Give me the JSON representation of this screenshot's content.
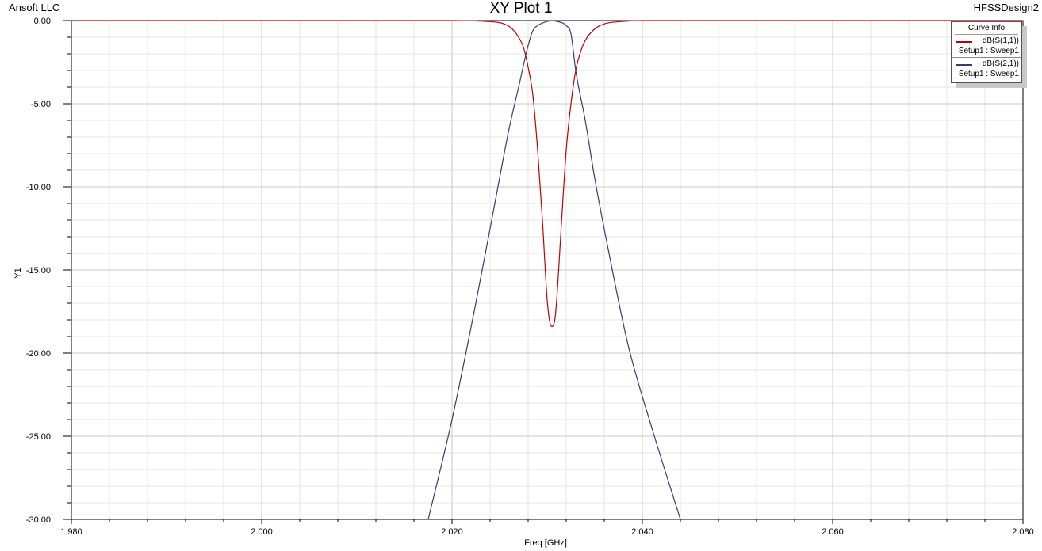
{
  "header": {
    "company": "Ansoft LLC",
    "title": "XY Plot 1",
    "design": "HFSSDesign2"
  },
  "legend": {
    "title": "Curve Info",
    "entries": [
      {
        "name": "dB(S(1,1))",
        "setup": "Setup1 : Sweep1",
        "color": "#c00000"
      },
      {
        "name": "dB(S(2,1))",
        "setup": "Setup1 : Sweep1",
        "color": "#3a3a78"
      }
    ]
  },
  "chart_data": {
    "type": "line",
    "title": "XY Plot 1",
    "xlabel": "Freq [GHz]",
    "ylabel": "Y1",
    "xlim": [
      1.98,
      2.08
    ],
    "ylim": [
      -30,
      0
    ],
    "x_ticks": [
      "1.980",
      "2.000",
      "2.020",
      "2.040",
      "2.060",
      "2.080"
    ],
    "y_ticks": [
      "0.00",
      "-5.00",
      "-10.00",
      "-15.00",
      "-20.00",
      "-25.00",
      "-30.00"
    ],
    "grid": true,
    "legend_position": "top-right",
    "series": [
      {
        "name": "dB(S(1,1))",
        "color": "#c00000",
        "x": [
          1.98,
          2.02,
          2.0235,
          2.026,
          2.027,
          2.0275,
          2.028,
          2.0285,
          2.029,
          2.0295,
          2.03,
          2.0303,
          2.0305,
          2.0308,
          2.031,
          2.0315,
          2.032,
          2.0325,
          2.033,
          2.0335,
          2.034,
          2.035,
          2.036,
          2.038,
          2.04,
          2.08
        ],
        "y": [
          0.0,
          0.0,
          -0.05,
          -0.35,
          -1.0,
          -1.6,
          -2.8,
          -4.5,
          -7.8,
          -12.0,
          -16.8,
          -18.2,
          -18.4,
          -18.0,
          -16.8,
          -12.2,
          -7.8,
          -5.0,
          -3.0,
          -1.9,
          -1.2,
          -0.5,
          -0.2,
          -0.05,
          0.0,
          0.0
        ]
      },
      {
        "name": "dB(S(2,1))",
        "color": "#3a3a78",
        "x": [
          2.0175,
          2.02,
          2.0225,
          2.0245,
          2.026,
          2.027,
          2.028,
          2.0285,
          2.029,
          2.03,
          2.0305,
          2.031,
          2.032,
          2.0325,
          2.033,
          2.034,
          2.035,
          2.0365,
          2.0385,
          2.041,
          2.044
        ],
        "y": [
          -30.0,
          -24.0,
          -17.0,
          -11.0,
          -6.5,
          -4.0,
          -1.5,
          -0.6,
          -0.3,
          -0.05,
          -0.02,
          -0.05,
          -0.3,
          -0.8,
          -3.0,
          -6.0,
          -9.5,
          -14.0,
          -19.5,
          -24.5,
          -30.0
        ]
      }
    ]
  }
}
